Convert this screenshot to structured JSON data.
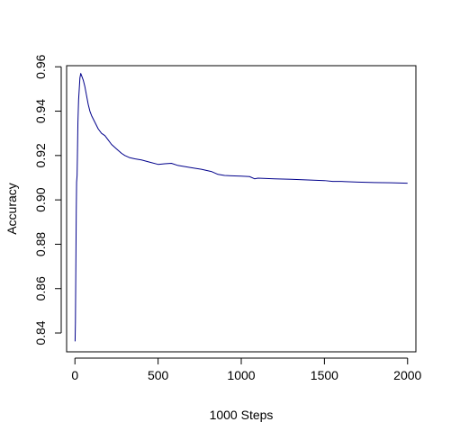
{
  "chart_data": {
    "type": "line",
    "title": "",
    "xlabel": "1000 Steps",
    "ylabel": "Accuracy",
    "xlim": [
      -50,
      2050
    ],
    "ylim": [
      0.8315,
      0.9605
    ],
    "x_ticks": [
      0,
      500,
      1000,
      1500,
      2000
    ],
    "y_ticks": [
      0.84,
      0.86,
      0.88,
      0.9,
      0.92,
      0.94,
      0.96
    ],
    "x_tick_labels": [
      "0",
      "500",
      "1000",
      "1500",
      "2000"
    ],
    "y_tick_labels": [
      "0.84",
      "0.86",
      "0.88",
      "0.90",
      "0.92",
      "0.94",
      "0.96"
    ],
    "grid": false,
    "legend": "none",
    "series": [
      {
        "color": "#00008b",
        "x": [
          1,
          3,
          5,
          8,
          10,
          13,
          15,
          18,
          22,
          26,
          30,
          35,
          40,
          45,
          50,
          60,
          70,
          80,
          90,
          100,
          120,
          140,
          160,
          180,
          200,
          220,
          250,
          280,
          300,
          330,
          360,
          400,
          450,
          500,
          540,
          580,
          620,
          660,
          700,
          760,
          820,
          860,
          900,
          960,
          1000,
          1050,
          1080,
          1100,
          1200,
          1300,
          1400,
          1500,
          1550,
          1600,
          1700,
          1800,
          1900,
          2000
        ],
        "y": [
          0.8362,
          0.845,
          0.865,
          0.895,
          0.908,
          0.911,
          0.92,
          0.935,
          0.945,
          0.95,
          0.955,
          0.957,
          0.956,
          0.955,
          0.954,
          0.951,
          0.947,
          0.943,
          0.94,
          0.938,
          0.935,
          0.932,
          0.93,
          0.929,
          0.927,
          0.925,
          0.923,
          0.921,
          0.92,
          0.919,
          0.9185,
          0.918,
          0.917,
          0.916,
          0.9163,
          0.9165,
          0.9155,
          0.915,
          0.9145,
          0.9138,
          0.9128,
          0.9115,
          0.911,
          0.9108,
          0.9107,
          0.9105,
          0.9095,
          0.9098,
          0.9095,
          0.9093,
          0.909,
          0.9087,
          0.9083,
          0.9083,
          0.908,
          0.9078,
          0.9077,
          0.9075
        ]
      }
    ]
  }
}
